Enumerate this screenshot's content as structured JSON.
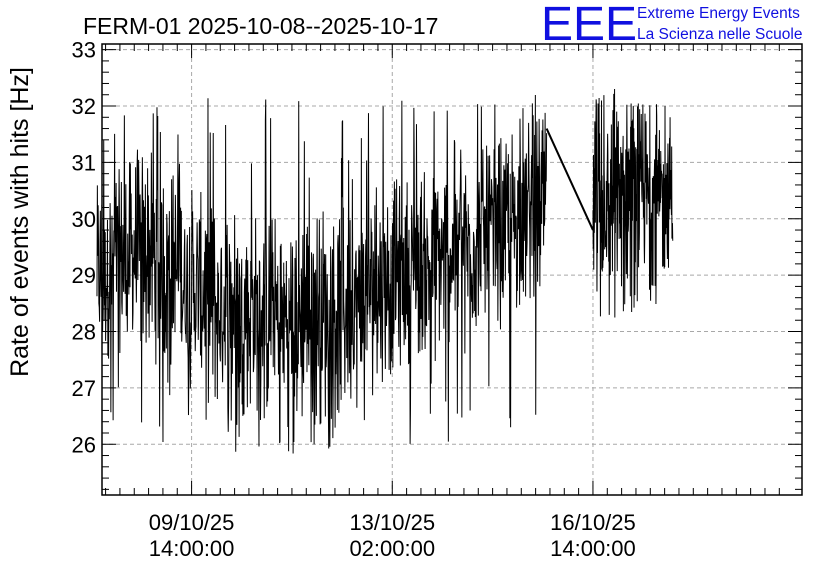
{
  "chart_data": {
    "type": "line",
    "title": "FERM-01 2025-10-08--2025-10-17",
    "ylabel": "Rate of events with hits [Hz]",
    "xlabel": "",
    "ylim": [
      25.1,
      33.1
    ],
    "yticks": [
      26,
      27,
      28,
      29,
      30,
      31,
      32,
      33
    ],
    "xlim_hours": [
      -37.5,
      255.5
    ],
    "xticks": [
      {
        "hours": 0,
        "date": "09/10/25",
        "time": "14:00:00"
      },
      {
        "hours": 84,
        "date": "13/10/25",
        "time": "02:00:00"
      },
      {
        "hours": 168,
        "date": "16/10/25",
        "time": "14:00:00"
      }
    ],
    "grid": true,
    "series": [
      {
        "name": "rate",
        "color": "#000000",
        "segments": [
          {
            "start_hours": -39.6,
            "end_hours": 148.6,
            "samples": 1200,
            "envelope_x": [
              -39.6,
              -30,
              -20,
              -10,
              0,
              10,
              20,
              30,
              40,
              50,
              60,
              70,
              80,
              90,
              100,
              110,
              120,
              130,
              140,
              148.6
            ],
            "envelope_low": [
              27.4,
              27.6,
              27.5,
              27.3,
              26.9,
              26.6,
              26.6,
              26.5,
              26.3,
              26.3,
              26.4,
              26.6,
              27.1,
              27.4,
              27.6,
              27.8,
              28.0,
              28.2,
              28.4,
              28.6
            ],
            "envelope_high": [
              30.6,
              30.9,
              31.3,
              31.0,
              30.6,
              30.3,
              30.3,
              30.1,
              30.1,
              30.3,
              30.4,
              30.4,
              30.6,
              30.8,
              30.9,
              31.1,
              31.2,
              31.5,
              31.8,
              31.9
            ],
            "min": 25.8,
            "max": 32.2
          },
          {
            "start_hours": 168.0,
            "end_hours": 201.4,
            "samples": 300,
            "envelope_x": [
              168.0,
              175,
              185,
              195,
              201.4
            ],
            "envelope_low": [
              28.7,
              28.7,
              28.8,
              28.8,
              29.2
            ],
            "envelope_high": [
              31.8,
              32.0,
              32.0,
              31.9,
              31.4
            ],
            "min": 28.2,
            "max": 32.4
          }
        ],
        "connector": [
          [
            148.6,
            31.6
          ],
          [
            168.0,
            29.8
          ]
        ]
      }
    ]
  },
  "logo": {
    "mark": "EEE",
    "line1": "Extreme Energy Events",
    "line2": "La Scienza nelle Scuole"
  }
}
